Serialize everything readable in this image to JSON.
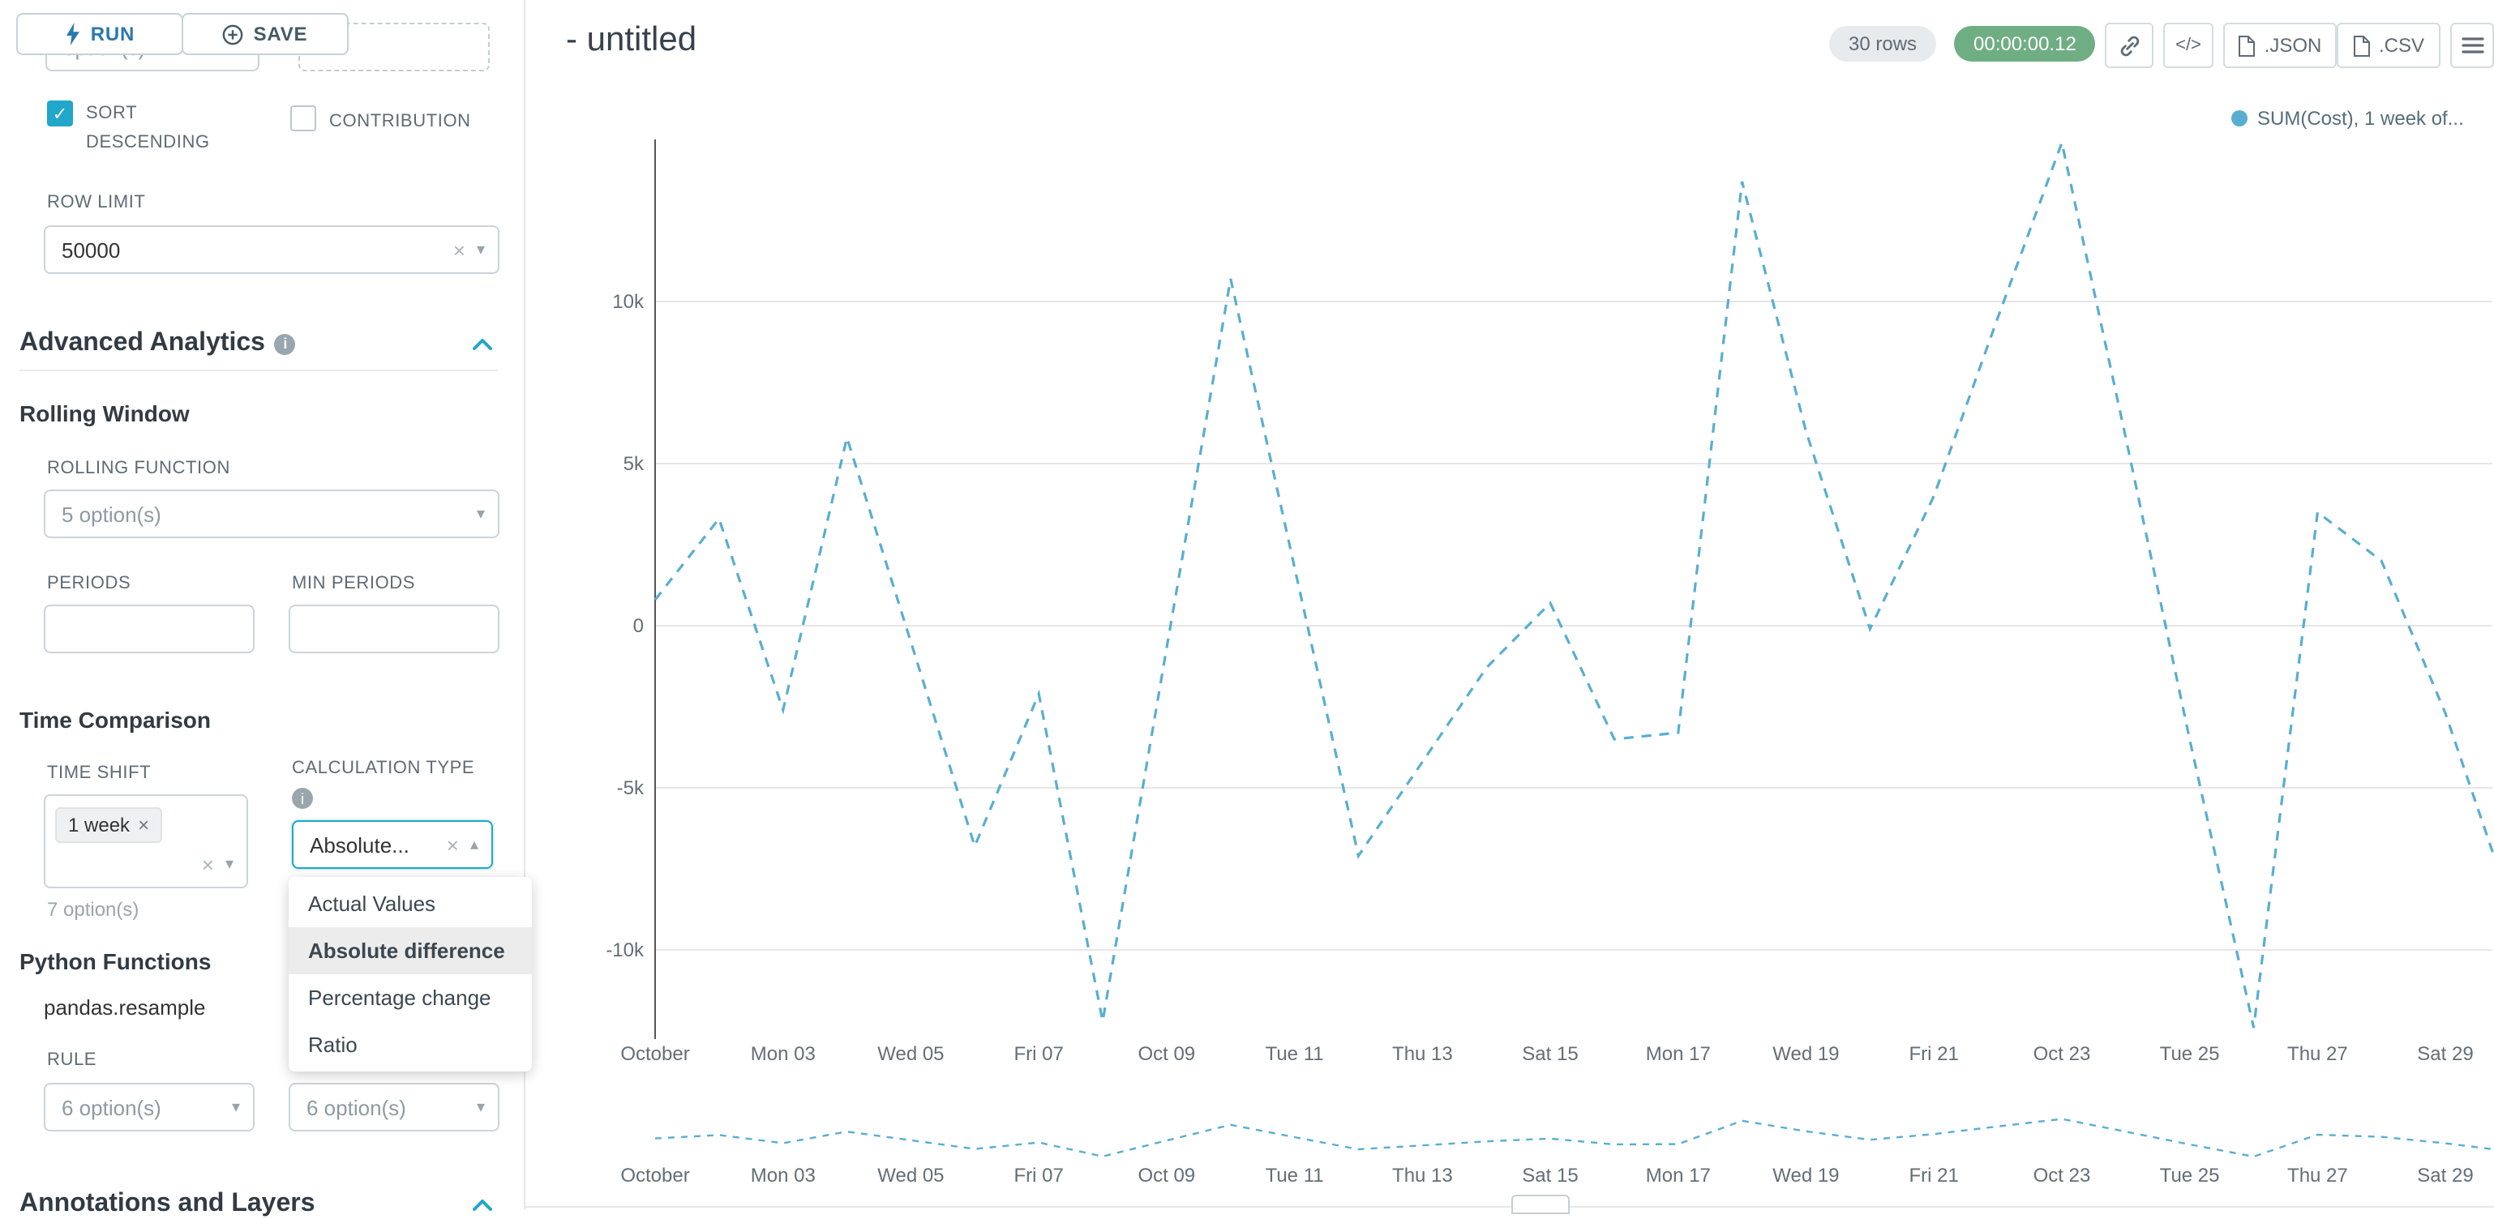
{
  "colors": {
    "accent": "#20a7c9",
    "timer_badge": "#6fae83",
    "series_line": "#58aed2",
    "run_text": "#2b78b0"
  },
  "toolbar": {
    "run": "RUN",
    "save": "SAVE"
  },
  "left_panel": {
    "partial_value": "option(s)",
    "sort_descending": "SORT DESCENDING",
    "contribution": "CONTRIBUTION",
    "row_limit_label": "ROW LIMIT",
    "row_limit_value": "50000",
    "advanced_analytics": "Advanced Analytics",
    "rolling_window": "Rolling Window",
    "rolling_function_label": "ROLLING FUNCTION",
    "rolling_function_value": "5 option(s)",
    "periods_label": "PERIODS",
    "min_periods_label": "MIN PERIODS",
    "time_comparison": "Time Comparison",
    "time_shift_label": "TIME SHIFT",
    "time_shift_tag": "1 week",
    "time_shift_hint": "7 option(s)",
    "calculation_type_label": "CALCULATION TYPE",
    "calculation_type_value": "Absolute...",
    "calculation_options": [
      "Actual Values",
      "Absolute difference",
      "Percentage change",
      "Ratio"
    ],
    "calculation_selected": "Absolute difference",
    "python_functions": "Python Functions",
    "python_function_name": "pandas.resample",
    "rule_label": "RULE",
    "rule_value_1": "6 option(s)",
    "rule_value_2": "6 option(s)",
    "annotations_layers": "Annotations and Layers"
  },
  "header": {
    "title": "- untitled",
    "rows_badge": "30 rows",
    "timer": "00:00:00.12",
    "code_icon_label": "</>",
    "json": ".JSON",
    "csv": ".CSV"
  },
  "legend": {
    "series_label": "SUM(Cost), 1 week of..."
  },
  "chart_data": {
    "type": "line",
    "title": "- untitled",
    "series_name": "SUM(Cost), 1 week offset",
    "line_style": "dashed",
    "grid": true,
    "legend_position": "top-right",
    "categories": [
      "Oct 01",
      "Oct 02",
      "Oct 03",
      "Oct 04",
      "Oct 05",
      "Oct 06",
      "Oct 07",
      "Oct 08",
      "Oct 09",
      "Oct 10",
      "Oct 11",
      "Oct 12",
      "Oct 13",
      "Oct 14",
      "Oct 15",
      "Oct 16",
      "Oct 17",
      "Oct 18",
      "Oct 19",
      "Oct 20",
      "Oct 21",
      "Oct 22",
      "Oct 23",
      "Oct 24",
      "Oct 25",
      "Oct 26",
      "Oct 27",
      "Oct 28",
      "Oct 29",
      "Oct 30"
    ],
    "values": [
      800,
      3300,
      -2600,
      5800,
      -500,
      -6800,
      -2100,
      -12200,
      -700,
      10700,
      1800,
      -7100,
      -4200,
      -1300,
      700,
      -3500,
      -3300,
      13700,
      6000,
      -100,
      4000,
      9500,
      14900,
      5800,
      -3500,
      -12400,
      3500,
      2000,
      -2700,
      -8500
    ],
    "ylim": [
      -12500,
      15000
    ],
    "y_ticks": [
      {
        "value": 10000,
        "label": "10k"
      },
      {
        "value": 5000,
        "label": "5k"
      },
      {
        "value": 0,
        "label": "0"
      },
      {
        "value": -5000,
        "label": "-5k"
      },
      {
        "value": -10000,
        "label": "-10k"
      }
    ],
    "x_tick_labels": [
      {
        "i": 0,
        "label": "October"
      },
      {
        "i": 2,
        "label": "Mon 03"
      },
      {
        "i": 4,
        "label": "Wed 05"
      },
      {
        "i": 6,
        "label": "Fri 07"
      },
      {
        "i": 8,
        "label": "Oct 09"
      },
      {
        "i": 10,
        "label": "Tue 11"
      },
      {
        "i": 12,
        "label": "Thu 13"
      },
      {
        "i": 14,
        "label": "Sat 15"
      },
      {
        "i": 16,
        "label": "Mon 17"
      },
      {
        "i": 18,
        "label": "Wed 19"
      },
      {
        "i": 20,
        "label": "Fri 21"
      },
      {
        "i": 22,
        "label": "Oct 23"
      },
      {
        "i": 24,
        "label": "Tue 25"
      },
      {
        "i": 26,
        "label": "Thu 27"
      },
      {
        "i": 28,
        "label": "Sat 29"
      }
    ],
    "has_mini_preview": true
  }
}
